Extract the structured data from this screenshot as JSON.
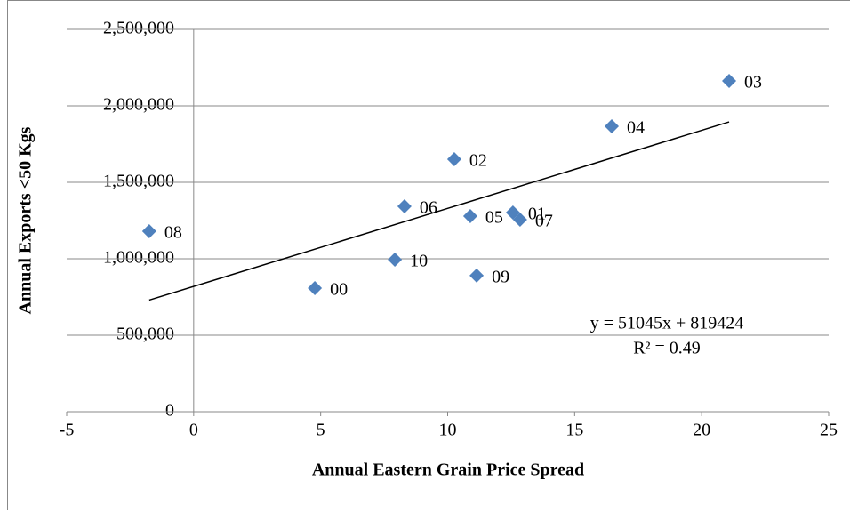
{
  "chart_data": {
    "type": "scatter",
    "x_label": "Annual Eastern Grain Price Spread",
    "y_label": "Annual Exports <50 Kgs",
    "categories": [
      "08",
      "00",
      "10",
      "06",
      "02",
      "05",
      "09",
      "01",
      "07",
      "04",
      "03"
    ],
    "x": [
      -1.75,
      4.77,
      7.92,
      8.3,
      10.26,
      10.89,
      11.14,
      12.57,
      12.85,
      16.46,
      21.08
    ],
    "values": [
      1180000,
      808000,
      994000,
      1343000,
      1651000,
      1279000,
      890000,
      1302000,
      1256000,
      1866000,
      2163000
    ],
    "color": "#4f81bd",
    "trendline": {
      "x": [
        -1.75,
        21.08
      ],
      "values": [
        730000,
        1895000
      ],
      "color": "#000000"
    },
    "equation": "y = 51045x + 819424",
    "r_squared": "R² = 0.49",
    "xlim": [
      -5,
      25
    ],
    "xticks": [
      -5,
      0,
      5,
      10,
      15,
      20,
      25
    ],
    "ylim": [
      0,
      2500000
    ],
    "yticks": [
      0,
      {
        "value": 500000,
        "label": "500,000"
      },
      {
        "value": 1000000,
        "label": "1,000,000"
      },
      {
        "value": 1500000,
        "label": "1,500,000"
      },
      {
        "value": 2000000,
        "label": "2,000,000"
      },
      {
        "value": 2500000,
        "label": "2,500,000"
      }
    ],
    "grid": true
  }
}
